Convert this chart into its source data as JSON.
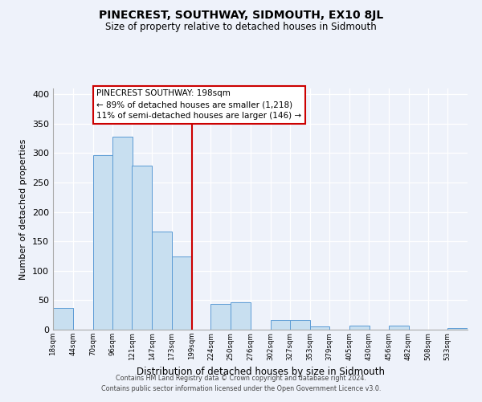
{
  "title": "PINECREST, SOUTHWAY, SIDMOUTH, EX10 8JL",
  "subtitle": "Size of property relative to detached houses in Sidmouth",
  "xlabel": "Distribution of detached houses by size in Sidmouth",
  "ylabel": "Number of detached properties",
  "bin_edges": [
    18,
    44,
    70,
    96,
    121,
    147,
    173,
    199,
    224,
    250,
    276,
    302,
    327,
    353,
    379,
    405,
    430,
    456,
    482,
    508,
    533
  ],
  "bin_labels": [
    "18sqm",
    "44sqm",
    "70sqm",
    "96sqm",
    "121sqm",
    "147sqm",
    "173sqm",
    "199sqm",
    "224sqm",
    "250sqm",
    "276sqm",
    "302sqm",
    "327sqm",
    "353sqm",
    "379sqm",
    "405sqm",
    "430sqm",
    "456sqm",
    "482sqm",
    "508sqm",
    "533sqm"
  ],
  "bar_heights": [
    37,
    0,
    297,
    328,
    279,
    167,
    125,
    0,
    44,
    46,
    0,
    17,
    17,
    5,
    0,
    7,
    0,
    7,
    0,
    0,
    3
  ],
  "bar_color": "#c8dff0",
  "bar_edge_color": "#5b9bd5",
  "property_line_x": 199,
  "property_label": "PINECREST SOUTHWAY: 198sqm",
  "annotation_line1": "← 89% of detached houses are smaller (1,218)",
  "annotation_line2": "11% of semi-detached houses are larger (146) →",
  "vline_color": "#cc0000",
  "ylim": [
    0,
    410
  ],
  "yticks": [
    0,
    50,
    100,
    150,
    200,
    250,
    300,
    350,
    400
  ],
  "background_color": "#eef2fa",
  "grid_color": "#ffffff",
  "footer_line1": "Contains HM Land Registry data © Crown copyright and database right 2024.",
  "footer_line2": "Contains public sector information licensed under the Open Government Licence v3.0."
}
